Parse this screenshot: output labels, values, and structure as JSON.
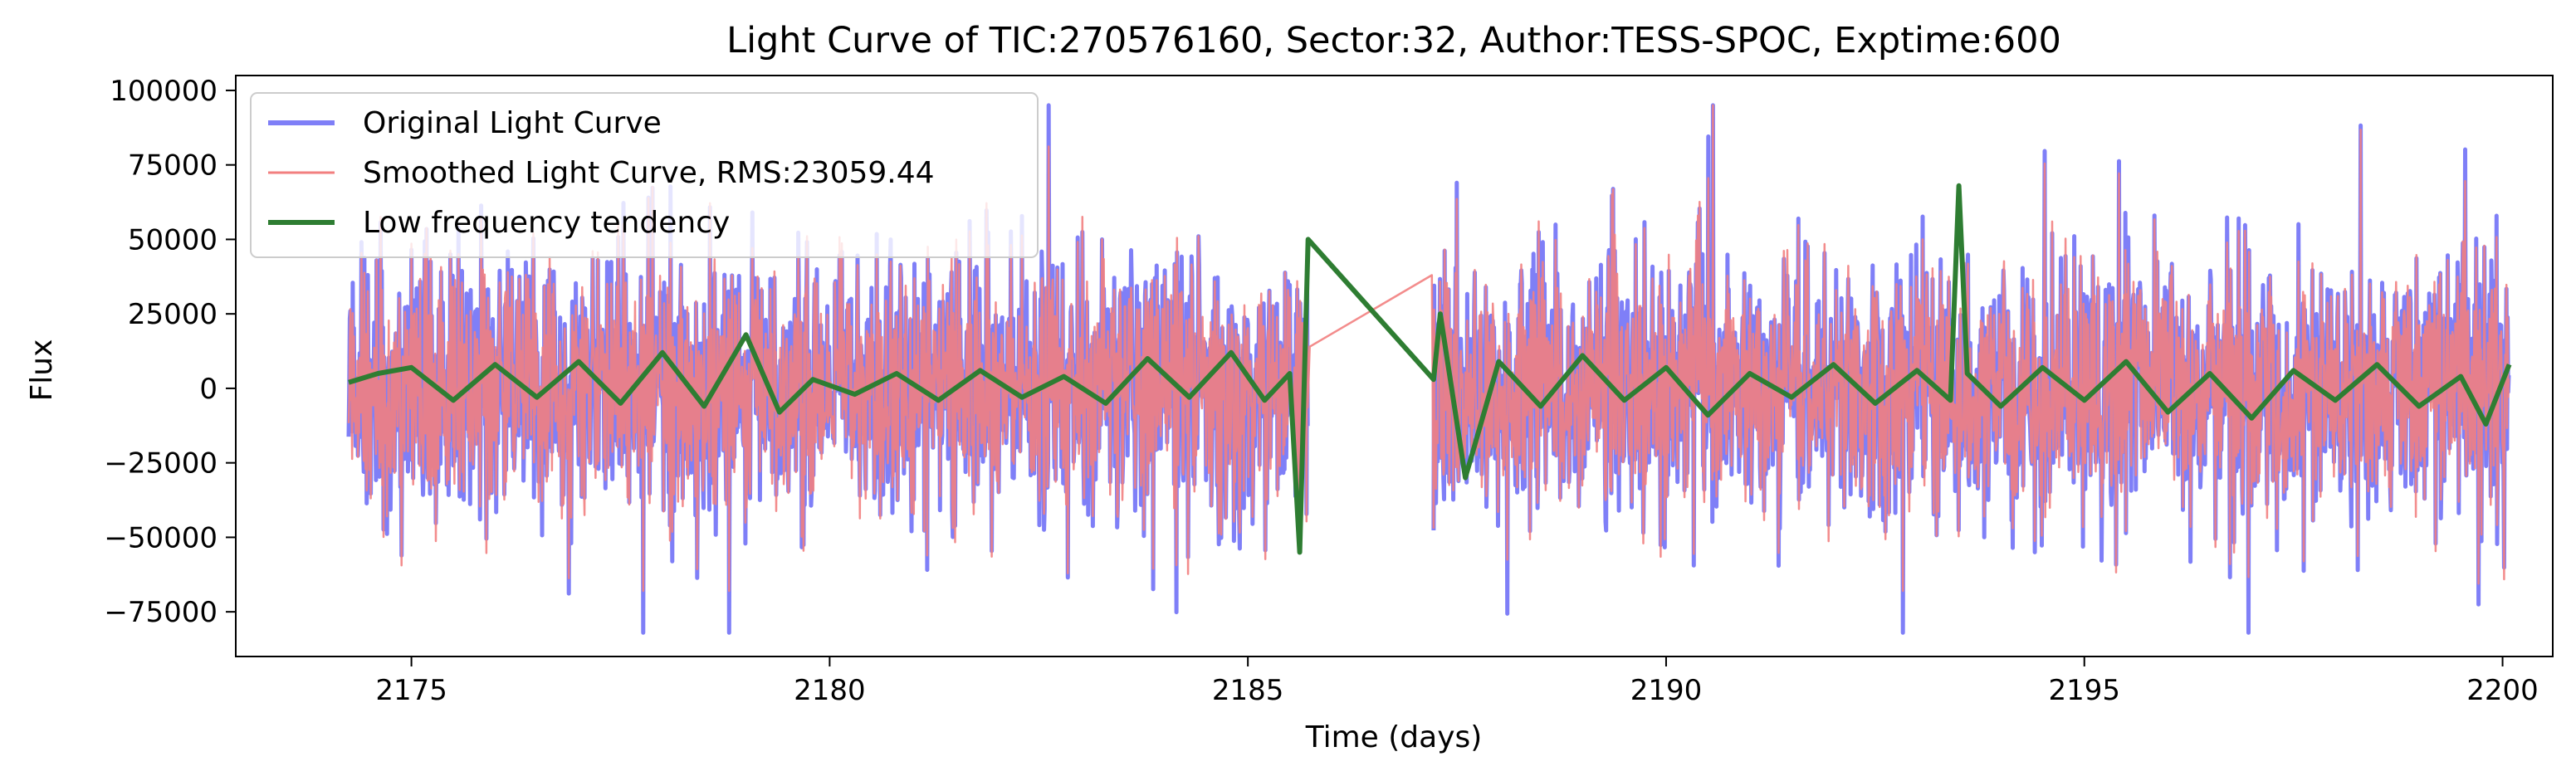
{
  "chart_data": {
    "type": "line",
    "title": "Light Curve of TIC:270576160, Sector:32, Author:TESS-SPOC, Exptime:600",
    "xlabel": "Time (days)",
    "ylabel": "Flux",
    "xlim": [
      2172.9,
      2200.6
    ],
    "ylim": [
      -90000,
      105000
    ],
    "xticks": [
      2175,
      2180,
      2185,
      2190,
      2195,
      2200
    ],
    "yticks": [
      -75000,
      -50000,
      -25000,
      0,
      25000,
      50000,
      75000,
      100000
    ],
    "grid": false,
    "legend_position": "top-left",
    "time_segments": [
      [
        2174.25,
        2185.72
      ],
      [
        2187.22,
        2200.08
      ]
    ],
    "series": [
      {
        "name": "Original Light Curve",
        "color": "#7f7ff7",
        "amplitude_std": 23059.44,
        "y_range": [
          -82000,
          95000
        ]
      },
      {
        "name": "Smoothed Light Curve, RMS:23059.44",
        "color": "#f27f7f",
        "y_range": [
          -68000,
          95000
        ]
      },
      {
        "name": "Low frequency tendency",
        "color": "#2e7d32",
        "x": [
          2174.25,
          2174.6,
          2175.0,
          2175.5,
          2176.0,
          2176.5,
          2177.0,
          2177.5,
          2178.0,
          2178.5,
          2179.0,
          2179.4,
          2179.8,
          2180.3,
          2180.8,
          2181.3,
          2181.8,
          2182.3,
          2182.8,
          2183.3,
          2183.8,
          2184.3,
          2184.8,
          2185.2,
          2185.5,
          2185.62,
          2185.72,
          2187.22,
          2187.3,
          2187.6,
          2188.0,
          2188.5,
          2189.0,
          2189.5,
          2190.0,
          2190.5,
          2191.0,
          2191.5,
          2192.0,
          2192.5,
          2193.0,
          2193.4,
          2193.5,
          2193.6,
          2194.0,
          2194.5,
          2195.0,
          2195.5,
          2196.0,
          2196.5,
          2197.0,
          2197.5,
          2198.0,
          2198.5,
          2199.0,
          2199.5,
          2199.8,
          2200.08
        ],
        "values": [
          2000,
          5000,
          7000,
          -4000,
          8000,
          -3000,
          9000,
          -5000,
          12000,
          -6000,
          18000,
          -8000,
          3000,
          -2000,
          5000,
          -4000,
          6000,
          -3000,
          4000,
          -5000,
          10000,
          -3000,
          12000,
          -4000,
          5000,
          -55000,
          50000,
          3000,
          25000,
          -30000,
          9000,
          -6000,
          11000,
          -4000,
          7000,
          -9000,
          5000,
          -3000,
          8000,
          -5000,
          6000,
          -4000,
          68000,
          5000,
          -6000,
          7000,
          -4000,
          9000,
          -8000,
          5000,
          -10000,
          6000,
          -4000,
          8000,
          -6000,
          4000,
          -12000,
          8000
        ]
      }
    ]
  }
}
